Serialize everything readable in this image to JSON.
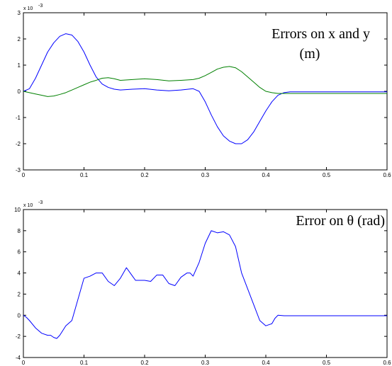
{
  "chart_data": [
    {
      "type": "line",
      "title": "",
      "xlabel": "",
      "ylabel": "",
      "xlim": [
        0,
        0.6
      ],
      "ylim": [
        -3,
        3
      ],
      "y_multiplier_label": "x 10",
      "y_multiplier_exponent": "-3",
      "annotation": [
        "Errors on x and y",
        "(m)"
      ],
      "x_ticks": [
        "0",
        "0.1",
        "0.2",
        "0.3",
        "0.4",
        "0.5",
        "0.6"
      ],
      "y_ticks": [
        "-3",
        "-2",
        "-1",
        "0",
        "1",
        "2",
        "3"
      ],
      "grid": false,
      "series": [
        {
          "color": "#0000ff",
          "x": [
            0,
            0.01,
            0.02,
            0.03,
            0.04,
            0.05,
            0.06,
            0.07,
            0.08,
            0.09,
            0.1,
            0.11,
            0.12,
            0.13,
            0.14,
            0.15,
            0.16,
            0.18,
            0.2,
            0.22,
            0.24,
            0.26,
            0.28,
            0.29,
            0.3,
            0.31,
            0.32,
            0.33,
            0.34,
            0.35,
            0.36,
            0.37,
            0.38,
            0.39,
            0.4,
            0.41,
            0.42,
            0.43,
            0.44,
            0.5,
            0.6
          ],
          "y": [
            0,
            0.1,
            0.5,
            1.0,
            1.5,
            1.85,
            2.1,
            2.2,
            2.15,
            1.9,
            1.5,
            1.0,
            0.55,
            0.28,
            0.15,
            0.08,
            0.05,
            0.08,
            0.1,
            0.05,
            0.02,
            0.05,
            0.1,
            0.0,
            -0.4,
            -0.9,
            -1.35,
            -1.7,
            -1.9,
            -2.0,
            -2.0,
            -1.85,
            -1.55,
            -1.15,
            -0.75,
            -0.4,
            -0.15,
            -0.05,
            -0.02,
            -0.02,
            -0.02
          ]
        },
        {
          "color": "#008000",
          "x": [
            0,
            0.01,
            0.02,
            0.03,
            0.04,
            0.05,
            0.06,
            0.07,
            0.08,
            0.09,
            0.1,
            0.11,
            0.12,
            0.13,
            0.14,
            0.15,
            0.16,
            0.18,
            0.2,
            0.22,
            0.24,
            0.26,
            0.28,
            0.29,
            0.3,
            0.31,
            0.32,
            0.33,
            0.34,
            0.35,
            0.36,
            0.37,
            0.38,
            0.39,
            0.4,
            0.41,
            0.42,
            0.43,
            0.44,
            0.5,
            0.6
          ],
          "y": [
            0,
            -0.05,
            -0.1,
            -0.15,
            -0.2,
            -0.18,
            -0.12,
            -0.05,
            0.05,
            0.15,
            0.25,
            0.35,
            0.42,
            0.5,
            0.52,
            0.48,
            0.42,
            0.45,
            0.48,
            0.45,
            0.4,
            0.42,
            0.45,
            0.5,
            0.6,
            0.72,
            0.85,
            0.92,
            0.95,
            0.9,
            0.75,
            0.55,
            0.35,
            0.15,
            0.0,
            -0.05,
            -0.08,
            -0.08,
            -0.08,
            -0.08,
            -0.08
          ]
        }
      ]
    },
    {
      "type": "line",
      "title": "",
      "xlabel": "",
      "ylabel": "",
      "xlim": [
        0,
        0.6
      ],
      "ylim": [
        -4,
        10
      ],
      "y_multiplier_label": "x 10",
      "y_multiplier_exponent": "-3",
      "annotation": [
        "Error on θ (rad)"
      ],
      "x_ticks": [
        "0",
        "0.1",
        "0.2",
        "0.3",
        "0.4",
        "0.5",
        "0.6"
      ],
      "y_ticks": [
        "-4",
        "-2",
        "0",
        "2",
        "4",
        "6",
        "8",
        "10"
      ],
      "grid": false,
      "series": [
        {
          "color": "#0000ff",
          "x": [
            0,
            0.005,
            0.01,
            0.02,
            0.03,
            0.04,
            0.045,
            0.05,
            0.055,
            0.06,
            0.07,
            0.08,
            0.09,
            0.1,
            0.11,
            0.12,
            0.13,
            0.14,
            0.15,
            0.16,
            0.17,
            0.18,
            0.185,
            0.19,
            0.2,
            0.21,
            0.22,
            0.23,
            0.24,
            0.25,
            0.26,
            0.27,
            0.275,
            0.28,
            0.29,
            0.3,
            0.31,
            0.32,
            0.33,
            0.34,
            0.35,
            0.36,
            0.37,
            0.38,
            0.39,
            0.4,
            0.41,
            0.415,
            0.42,
            0.43,
            0.44,
            0.45,
            0.5,
            0.6
          ],
          "y": [
            0,
            -0.2,
            -0.5,
            -1.2,
            -1.7,
            -1.9,
            -1.9,
            -2.1,
            -2.2,
            -1.9,
            -1.0,
            -0.5,
            1.5,
            3.5,
            3.7,
            4.0,
            4.0,
            3.2,
            2.8,
            3.5,
            4.5,
            3.7,
            3.3,
            3.3,
            3.3,
            3.2,
            3.8,
            3.8,
            3.0,
            2.8,
            3.6,
            4.0,
            4.0,
            3.7,
            5.0,
            6.8,
            8.0,
            7.8,
            7.9,
            7.6,
            6.5,
            4.0,
            2.5,
            1.0,
            -0.5,
            -1.0,
            -0.8,
            -0.3,
            0.0,
            -0.05,
            -0.05,
            -0.05,
            -0.05,
            -0.05
          ]
        }
      ]
    }
  ]
}
